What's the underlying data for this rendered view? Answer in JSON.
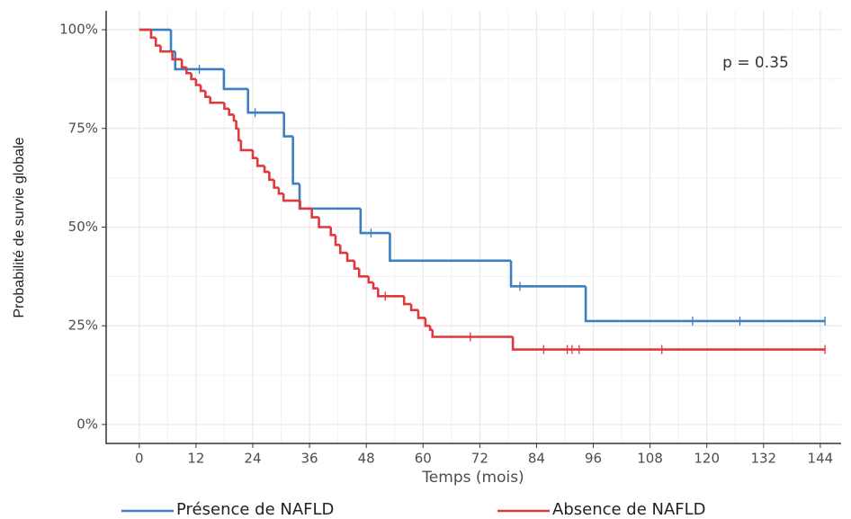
{
  "chart_data": {
    "type": "step",
    "y_label": "Probabilité de survie globale",
    "x_label": "Temps (mois)",
    "annotation": "p = 0.35",
    "xlim": [
      -7,
      148.4
    ],
    "ylim": [
      -4.8,
      104.8
    ],
    "xticks": [
      0,
      12,
      24,
      36,
      48,
      60,
      72,
      84,
      96,
      108,
      120,
      132,
      144
    ],
    "yticks": [
      {
        "value": 0,
        "label": "0%"
      },
      {
        "value": 25,
        "label": "25%"
      },
      {
        "value": 50,
        "label": "50%"
      },
      {
        "value": 75,
        "label": "75%"
      },
      {
        "value": 100,
        "label": "100%"
      }
    ],
    "grid": true,
    "legend": "bottom",
    "series": [
      {
        "name": "Présence de NAFLD",
        "color": "#3d7fc1",
        "x": [
          0,
          6.7,
          7.6,
          17.9,
          23,
          30.6,
          32.5,
          33.9,
          46.8,
          53,
          78.6,
          94.4,
          145
        ],
        "values": [
          100,
          94.5,
          90,
          85,
          79,
          73,
          61,
          54.7,
          48.5,
          41.5,
          35,
          26.2,
          26.2
        ],
        "censored": {
          "x": [
            12.7,
            24.5,
            49,
            80.5,
            117,
            127,
            145
          ],
          "values": [
            90,
            79,
            48.5,
            35,
            26.2,
            26.2,
            26.2
          ]
        }
      },
      {
        "name": "Absence de NAFLD",
        "color": "#e0393b",
        "x": [
          0,
          2.5,
          3.5,
          4.5,
          7,
          9,
          10,
          11,
          12,
          13,
          14,
          15,
          18,
          19,
          20,
          20.5,
          21,
          21.5,
          24,
          25,
          26.5,
          27.5,
          28.5,
          29.5,
          30.5,
          34,
          36.5,
          38,
          40.5,
          41.5,
          42.5,
          44,
          45.5,
          46.5,
          48.5,
          49.5,
          50.5,
          56,
          57.5,
          59,
          60.5,
          61.5,
          62,
          79,
          145
        ],
        "values": [
          100,
          98,
          96,
          94.5,
          92.5,
          90.5,
          89,
          87.5,
          86,
          84.5,
          83,
          81.5,
          80,
          78.5,
          77,
          75,
          72,
          69.5,
          67.5,
          65.5,
          64,
          62,
          60,
          58.5,
          56.7,
          54.7,
          52.5,
          50,
          48,
          45.5,
          43.5,
          41.5,
          39.5,
          37.5,
          36,
          34.5,
          32.5,
          30.5,
          29,
          27,
          25,
          24,
          22.2,
          19,
          19
        ],
        "censored": {
          "x": [
            52,
            70,
            85.5,
            90.5,
            91.5,
            93,
            110.5,
            145
          ],
          "values": [
            32.5,
            22.2,
            19,
            19,
            19,
            19,
            19,
            19
          ]
        }
      }
    ]
  }
}
